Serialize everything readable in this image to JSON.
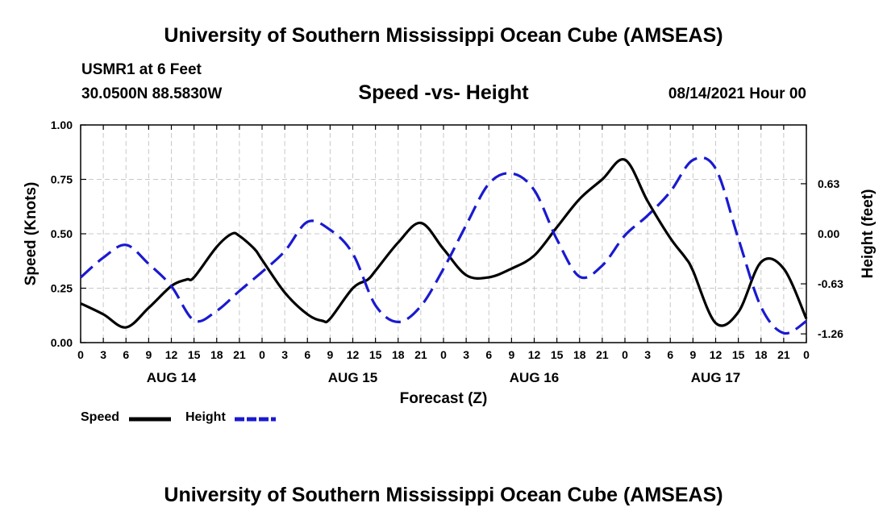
{
  "header": {
    "title": "University of Southern Mississippi Ocean Cube (AMSEAS)",
    "station": "USMR1 at 6 Feet",
    "coords": "30.0500N  88.5830W",
    "subtitle": "Speed -vs- Height",
    "datetime": "08/14/2021 Hour 00"
  },
  "footer": {
    "title": "University of Southern Mississippi Ocean Cube (AMSEAS)"
  },
  "legend": {
    "speed_label": "Speed",
    "height_label": "Height"
  },
  "colors": {
    "speed": "#000000",
    "height": "#1a1ad0",
    "grid": "#c8c8c8"
  },
  "chart_data": {
    "type": "line",
    "title": "Speed -vs- Height",
    "xlabel": "Forecast (Z)",
    "ylabel": "Speed (Knots)",
    "y2label": "Height (feet)",
    "xlim": [
      0,
      96
    ],
    "ylim": [
      0,
      1.0
    ],
    "y2lim": [
      -1.37,
      1.37
    ],
    "xticks": [
      0,
      3,
      6,
      9,
      12,
      15,
      18,
      21,
      24,
      27,
      30,
      33,
      36,
      39,
      42,
      45,
      48,
      51,
      54,
      57,
      60,
      63,
      66,
      69,
      72,
      75,
      78,
      81,
      84,
      87,
      90,
      93,
      96
    ],
    "xtick_labels": [
      "0",
      "3",
      "6",
      "9",
      "12",
      "15",
      "18",
      "21",
      "0",
      "3",
      "6",
      "9",
      "12",
      "15",
      "18",
      "21",
      "0",
      "3",
      "6",
      "9",
      "12",
      "15",
      "18",
      "21",
      "0",
      "3",
      "6",
      "9",
      "12",
      "15",
      "18",
      "21",
      "0"
    ],
    "date_labels": [
      {
        "x": 12,
        "label": "AUG 14"
      },
      {
        "x": 36,
        "label": "AUG 15"
      },
      {
        "x": 60,
        "label": "AUG 16"
      },
      {
        "x": 84,
        "label": "AUG 17"
      }
    ],
    "yticks": [
      {
        "value": 0.0,
        "label": "0.00"
      },
      {
        "value": 0.25,
        "label": "0.25"
      },
      {
        "value": 0.5,
        "label": "0.50"
      },
      {
        "value": 0.75,
        "label": "0.75"
      },
      {
        "value": 1.0,
        "label": "1.00"
      }
    ],
    "y2ticks": [
      {
        "value": 0.63,
        "label": "0.63"
      },
      {
        "value": 0.0,
        "label": "0.00"
      },
      {
        "value": -0.63,
        "label": "-0.63"
      },
      {
        "value": -1.26,
        "label": "-1.26"
      }
    ],
    "grid": true,
    "series": [
      {
        "name": "Speed",
        "axis": "left",
        "style": "solid",
        "x": [
          0,
          3,
          6,
          9,
          12,
          14,
          15,
          18,
          20,
          21,
          23,
          24,
          27,
          30,
          32,
          33,
          36,
          38,
          39,
          42,
          45,
          48,
          51,
          54,
          57,
          60,
          63,
          66,
          69,
          72,
          75,
          78,
          80,
          81,
          84,
          87,
          90,
          93,
          96
        ],
        "values": [
          0.18,
          0.13,
          0.07,
          0.16,
          0.26,
          0.29,
          0.3,
          0.44,
          0.5,
          0.49,
          0.43,
          0.38,
          0.23,
          0.13,
          0.1,
          0.11,
          0.25,
          0.29,
          0.33,
          0.46,
          0.55,
          0.43,
          0.31,
          0.3,
          0.34,
          0.4,
          0.53,
          0.66,
          0.75,
          0.84,
          0.65,
          0.48,
          0.39,
          0.33,
          0.09,
          0.14,
          0.37,
          0.34,
          0.11
        ]
      },
      {
        "name": "Height",
        "axis": "right",
        "style": "dashed",
        "x": [
          0,
          3,
          6,
          9,
          12,
          15,
          18,
          21,
          24,
          27,
          30,
          33,
          36,
          39,
          42,
          45,
          48,
          51,
          54,
          57,
          60,
          63,
          66,
          69,
          72,
          75,
          78,
          81,
          84,
          87,
          90,
          93,
          96
        ],
        "values": [
          -0.55,
          -0.3,
          -0.14,
          -0.38,
          -0.66,
          -1.09,
          -0.97,
          -0.72,
          -0.48,
          -0.22,
          0.15,
          0.05,
          -0.25,
          -0.9,
          -1.11,
          -0.91,
          -0.44,
          0.11,
          0.63,
          0.76,
          0.55,
          -0.07,
          -0.54,
          -0.4,
          -0.02,
          0.23,
          0.53,
          0.93,
          0.82,
          -0.06,
          -0.92,
          -1.25,
          -1.1
        ]
      }
    ]
  }
}
